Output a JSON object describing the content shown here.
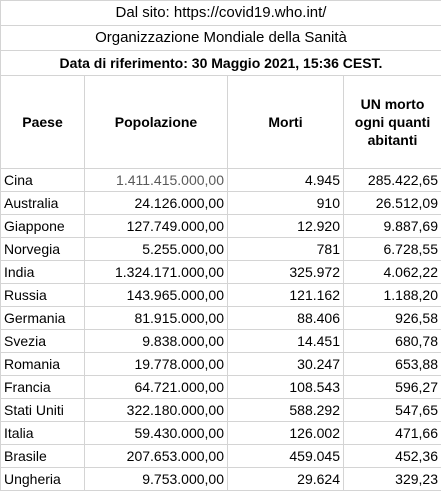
{
  "banner": {
    "source": "Dal sito: https://covid19.who.int/",
    "organization": "Organizzazione Mondiale della Sanità",
    "reference_date": "Data di riferimento: 30 Maggio 2021, 15:36 CEST."
  },
  "columns": [
    "Paese",
    "Popolazione",
    "Morti",
    "UN morto ogni quanti abitanti"
  ],
  "rows": [
    {
      "paese": "Cina",
      "popolazione": "1.411.415.000,00",
      "morti": "4.945",
      "ogni": "285.422,65"
    },
    {
      "paese": "Australia",
      "popolazione": "24.126.000,00",
      "morti": "910",
      "ogni": "26.512,09"
    },
    {
      "paese": "Giappone",
      "popolazione": "127.749.000,00",
      "morti": "12.920",
      "ogni": "9.887,69"
    },
    {
      "paese": "Norvegia",
      "popolazione": "5.255.000,00",
      "morti": "781",
      "ogni": "6.728,55"
    },
    {
      "paese": "India",
      "popolazione": "1.324.171.000,00",
      "morti": "325.972",
      "ogni": "4.062,22"
    },
    {
      "paese": "Russia",
      "popolazione": "143.965.000,00",
      "morti": "121.162",
      "ogni": "1.188,20"
    },
    {
      "paese": "Germania",
      "popolazione": "81.915.000,00",
      "morti": "88.406",
      "ogni": "926,58"
    },
    {
      "paese": "Svezia",
      "popolazione": "9.838.000,00",
      "morti": "14.451",
      "ogni": "680,78"
    },
    {
      "paese": "Romania",
      "popolazione": "19.778.000,00",
      "morti": "30.247",
      "ogni": "653,88"
    },
    {
      "paese": "Francia",
      "popolazione": "64.721.000,00",
      "morti": "108.543",
      "ogni": "596,27"
    },
    {
      "paese": "Stati Uniti",
      "popolazione": "322.180.000,00",
      "morti": "588.292",
      "ogni": "547,65"
    },
    {
      "paese": "Italia",
      "popolazione": "59.430.000,00",
      "morti": "126.002",
      "ogni": "471,66"
    },
    {
      "paese": "Brasile",
      "popolazione": "207.653.000,00",
      "morti": "459.045",
      "ogni": "452,36"
    },
    {
      "paese": "Ungheria",
      "popolazione": "9.753.000,00",
      "morti": "29.624",
      "ogni": "329,23"
    }
  ]
}
